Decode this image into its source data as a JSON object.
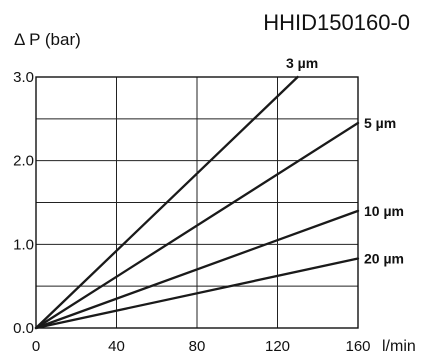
{
  "chart_data": {
    "type": "line",
    "title": "HHID150160-0",
    "ylabel": "Δ P (bar)",
    "xlabel": "l/min",
    "xlim": [
      0,
      160
    ],
    "ylim": [
      0,
      3.0
    ],
    "x_ticks": [
      "0",
      "40",
      "80",
      "120",
      "160"
    ],
    "y_ticks": [
      "0.0",
      "1.0",
      "2.0",
      "3.0"
    ],
    "grid": true,
    "series": [
      {
        "name": "3 µm",
        "x": [
          0,
          130
        ],
        "y": [
          0,
          3.0
        ]
      },
      {
        "name": "5 µm",
        "x": [
          0,
          160
        ],
        "y": [
          0,
          2.45
        ]
      },
      {
        "name": "10 µm",
        "x": [
          0,
          160
        ],
        "y": [
          0,
          1.4
        ]
      },
      {
        "name": "20 µm",
        "x": [
          0,
          160
        ],
        "y": [
          0,
          0.83
        ]
      }
    ]
  }
}
